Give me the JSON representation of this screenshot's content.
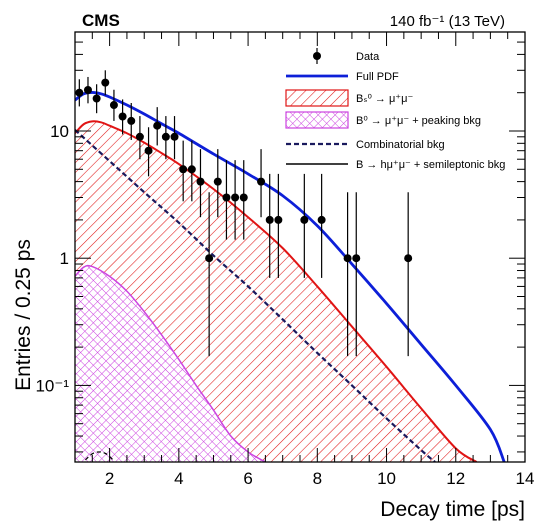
{
  "chart_data": {
    "type": "scatter",
    "experiment_label": "CMS",
    "luminosity_label": "140 fb⁻¹ (13 TeV)",
    "xlabel": "Decay time [ps]",
    "ylabel": "Entries / 0.25 ps",
    "xlim": [
      1,
      14
    ],
    "ylim": [
      0.025,
      60
    ],
    "y_scale": "log",
    "x_ticks": [
      2,
      4,
      6,
      8,
      10,
      12,
      14
    ],
    "x_tick_labels": [
      "2",
      "4",
      "6",
      "8",
      "10",
      "12",
      "14"
    ],
    "y_ticks": [
      0.1,
      1,
      10
    ],
    "y_tick_labels": [
      "10⁻¹",
      "1",
      "10"
    ],
    "legend_position": "top-right",
    "legend": [
      {
        "label": "Data",
        "style": "marker"
      },
      {
        "label": "Full PDF",
        "style": "line",
        "color": "#0d1fd8"
      },
      {
        "label": "Bₛ⁰ → μ⁺μ⁻",
        "style": "hatch",
        "color": "#e01414"
      },
      {
        "label": "B⁰ → μ⁺μ⁻ + peaking bkg",
        "style": "crosshatch",
        "color": "#cc44e0"
      },
      {
        "label": "Combinatorial bkg",
        "style": "dashed",
        "color": "#1a1a5e"
      },
      {
        "label": "B → hμ⁺μ⁻ + semileptonic bkg",
        "style": "line",
        "color": "#000000"
      }
    ],
    "data_points": {
      "x": [
        1.125,
        1.375,
        1.625,
        1.875,
        2.125,
        2.375,
        2.625,
        2.875,
        3.125,
        3.375,
        3.625,
        3.875,
        4.125,
        4.375,
        4.625,
        4.875,
        5.125,
        5.375,
        5.625,
        5.875,
        6.375,
        6.625,
        6.875,
        7.625,
        8.125,
        8.875,
        9.125,
        10.625
      ],
      "y": [
        20,
        21,
        18,
        24,
        16,
        13,
        12,
        9,
        7,
        11,
        9,
        9,
        5,
        5,
        4,
        1,
        4,
        3,
        3,
        3,
        4,
        2,
        2,
        2,
        2,
        1,
        1,
        1
      ],
      "yerr_low": [
        4.4,
        4.5,
        4.2,
        4.9,
        4.0,
        3.6,
        3.5,
        3.0,
        2.6,
        3.3,
        3.0,
        3.0,
        2.2,
        2.2,
        1.9,
        0.83,
        1.9,
        1.6,
        1.6,
        1.6,
        1.9,
        1.3,
        1.3,
        1.3,
        1.3,
        0.83,
        0.83,
        0.83
      ],
      "yerr_high": [
        5.5,
        5.6,
        5.3,
        6.0,
        5.1,
        4.7,
        4.6,
        4.1,
        3.7,
        4.4,
        4.1,
        4.1,
        3.4,
        3.4,
        3.2,
        2.3,
        3.2,
        2.9,
        2.9,
        2.9,
        3.2,
        2.6,
        2.6,
        2.6,
        2.6,
        2.3,
        2.3,
        2.3
      ]
    },
    "full_pdf_curve": {
      "x": [
        1.0,
        1.25,
        1.5,
        1.75,
        2.0,
        2.5,
        3.0,
        3.5,
        4.0,
        5.0,
        6.0,
        7.0,
        8.0,
        9.0,
        10.0,
        11.0,
        12.0,
        13.0,
        13.4
      ],
      "y": [
        17.5,
        19.6,
        20.1,
        19.6,
        18.5,
        16.0,
        13.6,
        11.4,
        9.6,
        6.6,
        4.6,
        3.1,
        1.8,
        0.9,
        0.44,
        0.21,
        0.1,
        0.045,
        0.025
      ]
    },
    "bs_signal_curve": {
      "x": [
        1.0,
        1.25,
        1.5,
        1.75,
        2.0,
        2.5,
        3.0,
        3.5,
        4.0,
        5.0,
        6.0,
        7.0,
        8.0,
        9.0,
        10.0,
        11.0,
        12.0,
        12.6
      ],
      "y": [
        9.6,
        11.3,
        11.9,
        11.7,
        11.0,
        9.6,
        8.1,
        6.7,
        5.5,
        3.5,
        2.1,
        1.2,
        0.6,
        0.29,
        0.14,
        0.066,
        0.032,
        0.025
      ]
    },
    "b0_peaking_curve": {
      "x": [
        1.0,
        1.25,
        1.5,
        2.0,
        2.5,
        3.0,
        3.5,
        4.0,
        4.5,
        5.0,
        5.5,
        6.0,
        6.5
      ],
      "y": [
        0.72,
        0.85,
        0.86,
        0.72,
        0.55,
        0.38,
        0.25,
        0.16,
        0.1,
        0.064,
        0.04,
        0.03,
        0.025
      ]
    },
    "combinatorial_curve": {
      "x": [
        1.0,
        2.0,
        3.0,
        4.0,
        5.0,
        6.0,
        7.0,
        8.0,
        9.0,
        10.0,
        11.0,
        11.4
      ],
      "y": [
        10.2,
        5.8,
        3.3,
        1.9,
        1.05,
        0.6,
        0.33,
        0.18,
        0.1,
        0.055,
        0.031,
        0.025
      ]
    },
    "semileptonic_curve": {
      "x": [
        1.3,
        1.5,
        1.7,
        1.9,
        2.1
      ],
      "y": [
        0.026,
        0.029,
        0.03,
        0.029,
        0.026
      ]
    }
  }
}
